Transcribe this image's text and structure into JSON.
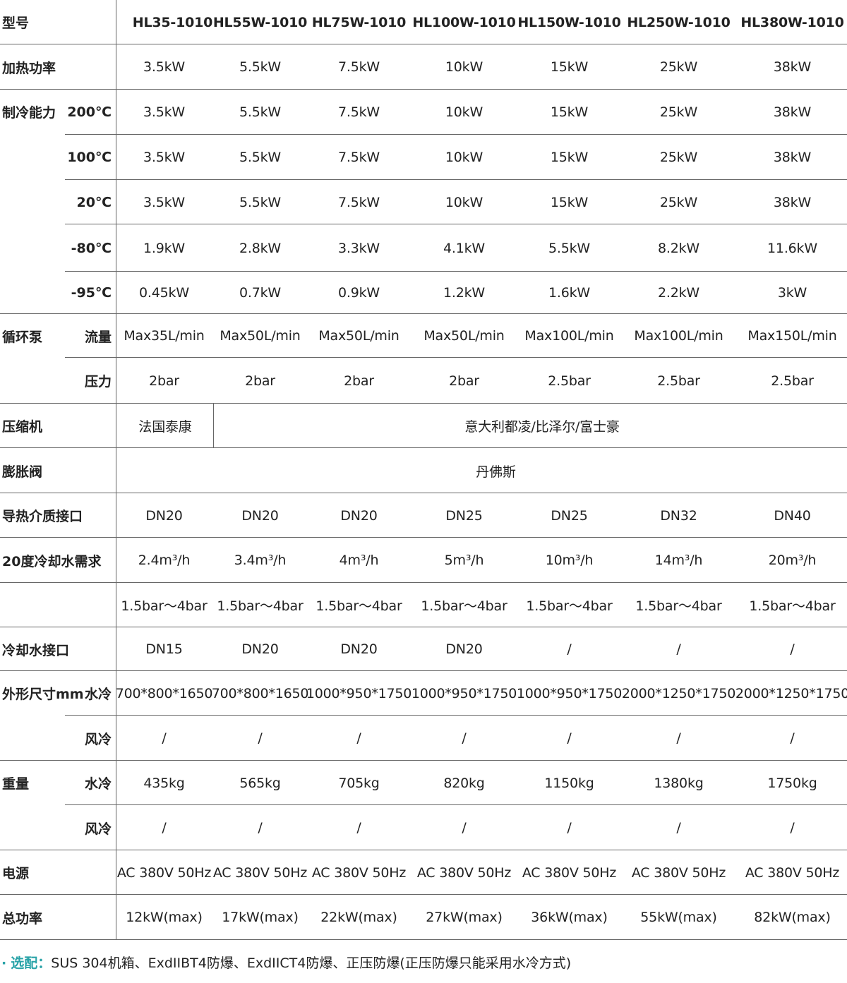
{
  "header": {
    "label": "型号",
    "models": [
      "HL35-1010",
      "HL55W-1010",
      "HL75W-1010",
      "HL100W-1010",
      "HL150W-1010",
      "HL250W-1010",
      "HL380W-1010"
    ]
  },
  "rows": [
    {
      "label": "加热功率",
      "sub": "",
      "values": [
        "3.5kW",
        "5.5kW",
        "7.5kW",
        "10kW",
        "15kW",
        "25kW",
        "38kW"
      ]
    },
    {
      "label": "制冷能力",
      "sub": "200℃",
      "values": [
        "3.5kW",
        "5.5kW",
        "7.5kW",
        "10kW",
        "15kW",
        "25kW",
        "38kW"
      ]
    },
    {
      "label": "",
      "sub": "100℃",
      "values": [
        "3.5kW",
        "5.5kW",
        "7.5kW",
        "10kW",
        "15kW",
        "25kW",
        "38kW"
      ]
    },
    {
      "label": "",
      "sub": "20℃",
      "values": [
        "3.5kW",
        "5.5kW",
        "7.5kW",
        "10kW",
        "15kW",
        "25kW",
        "38kW"
      ]
    },
    {
      "label": "",
      "sub": "-80℃",
      "values": [
        "1.9kW",
        "2.8kW",
        "3.3kW",
        "4.1kW",
        "5.5kW",
        "8.2kW",
        "11.6kW"
      ]
    },
    {
      "label": "",
      "sub": "-95℃",
      "values": [
        "0.45kW",
        "0.7kW",
        "0.9kW",
        "1.2kW",
        "1.6kW",
        "2.2kW",
        "3kW"
      ]
    },
    {
      "label": "循环泵",
      "sub": "流量",
      "values": [
        "Max35L/min",
        "Max50L/min",
        "Max50L/min",
        "Max50L/min",
        "Max100L/min",
        "Max100L/min",
        "Max150L/min"
      ]
    },
    {
      "label": "",
      "sub": "压力",
      "values": [
        "2bar",
        "2bar",
        "2bar",
        "2bar",
        "2.5bar",
        "2.5bar",
        "2.5bar"
      ]
    },
    {
      "label": "压缩机",
      "sub": "",
      "values": [
        "法国泰康",
        "意大利都凌/比泽尔/富士豪"
      ],
      "span": "first-rest"
    },
    {
      "label": "膨胀阀",
      "sub": "",
      "values": [
        "丹佛斯"
      ],
      "span": "all"
    },
    {
      "label": "导热介质接口",
      "sub": "",
      "values": [
        "DN20",
        "DN20",
        "DN20",
        "DN25",
        "DN25",
        "DN32",
        "DN40"
      ]
    },
    {
      "label": "20度冷却水需求",
      "sub": "",
      "values": [
        "2.4m³/h",
        "3.4m³/h",
        "4m³/h",
        "5m³/h",
        "10m³/h",
        "14m³/h",
        "20m³/h"
      ]
    },
    {
      "label": "",
      "sub": "",
      "values": [
        "1.5bar～4bar",
        "1.5bar～4bar",
        "1.5bar～4bar",
        "1.5bar～4bar",
        "1.5bar～4bar",
        "1.5bar～4bar",
        "1.5bar～4bar"
      ]
    },
    {
      "label": "冷却水接口",
      "sub": "",
      "values": [
        "DN15",
        "DN20",
        "DN20",
        "DN20",
        "/",
        "/",
        "/"
      ]
    },
    {
      "label": "外形尺寸mm",
      "sub": "水冷",
      "values": [
        "700*800*1650",
        "700*800*1650",
        "1000*950*1750",
        "1000*950*1750",
        "1000*950*1750",
        "2000*1250*1750",
        "2000*1250*1750"
      ]
    },
    {
      "label": "",
      "sub": "风冷",
      "values": [
        "/",
        "/",
        "/",
        "/",
        "/",
        "/",
        "/"
      ]
    },
    {
      "label": "重量",
      "sub": "水冷",
      "values": [
        "435kg",
        "565kg",
        "705kg",
        "820kg",
        "1150kg",
        "1380kg",
        "1750kg"
      ]
    },
    {
      "label": "",
      "sub": "风冷",
      "values": [
        "/",
        "/",
        "/",
        "/",
        "/",
        "/",
        "/"
      ]
    },
    {
      "label": "电源",
      "sub": "",
      "values": [
        "AC 380V 50Hz",
        "AC 380V 50Hz",
        "AC 380V 50Hz",
        "AC 380V 50Hz",
        "AC 380V 50Hz",
        "AC 380V 50Hz",
        "AC 380V 50Hz"
      ]
    },
    {
      "label": "总功率",
      "sub": "",
      "values": [
        "12kW(max)",
        "17kW(max)",
        "22kW(max)",
        "27kW(max)",
        "36kW(max)",
        "55kW(max)",
        "82kW(max)"
      ]
    }
  ],
  "note": {
    "bullet": "·",
    "key": "选配：",
    "text": "SUS 304机箱、ExdIIBT4防爆、ExdIICT4防爆、正压防爆(正压防爆只能采用水冷方式)"
  },
  "colors": {
    "accent": "#2aa3a8",
    "grid": "#666666",
    "text": "#222222"
  }
}
